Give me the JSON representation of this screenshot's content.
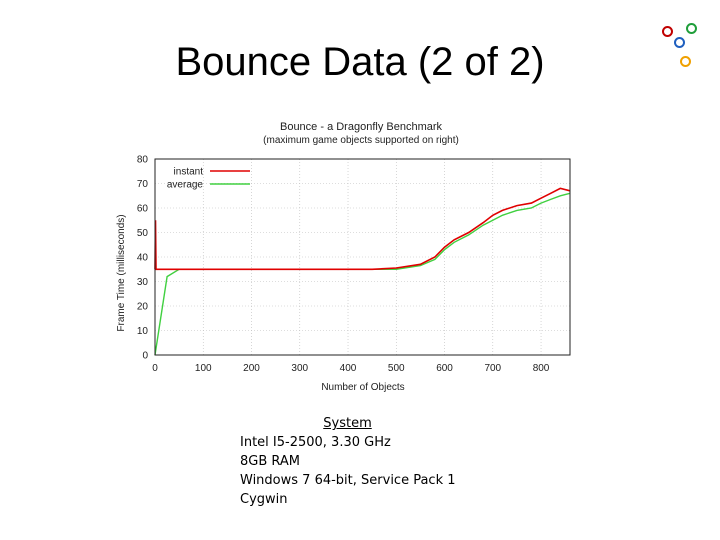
{
  "slide": {
    "title": "Bounce Data (2 of 2)"
  },
  "decorations": {
    "circle_colors": [
      "#c00000",
      "#1f9e3a",
      "#1f5fbf",
      "#f0a000"
    ]
  },
  "system_info": {
    "title": "System",
    "lines": [
      "Intel I5-2500, 3.30 GHz",
      "8GB RAM",
      "Windows 7 64-bit, Service Pack 1",
      "Cygwin"
    ]
  },
  "chart_data": {
    "type": "line",
    "title": "Bounce - a Dragonfly Benchmark",
    "subtitle": "(maximum game objects supported on right)",
    "xlabel": "Number of Objects",
    "ylabel": "Frame Time (milliseconds)",
    "xlim": [
      0,
      860
    ],
    "ylim": [
      0,
      80
    ],
    "xticks": [
      0,
      100,
      200,
      300,
      400,
      500,
      600,
      700,
      800
    ],
    "yticks": [
      0,
      10,
      20,
      30,
      40,
      50,
      60,
      70,
      80
    ],
    "grid": true,
    "legend_position": "top-left",
    "series": [
      {
        "name": "instant",
        "color": "#e00000",
        "x": [
          0,
          1,
          2,
          3,
          50,
          100,
          150,
          200,
          250,
          300,
          350,
          400,
          450,
          500,
          550,
          580,
          600,
          620,
          650,
          680,
          700,
          720,
          750,
          780,
          800,
          820,
          840,
          860
        ],
        "y": [
          35,
          55,
          35,
          35,
          35,
          35,
          35,
          35,
          35,
          35,
          35,
          35,
          35,
          35.5,
          37,
          40,
          44,
          47,
          50,
          54,
          57,
          59,
          61,
          62,
          64,
          66,
          68,
          67
        ]
      },
      {
        "name": "average",
        "color": "#40d040",
        "x": [
          0,
          25,
          50,
          100,
          150,
          200,
          250,
          300,
          350,
          400,
          450,
          500,
          550,
          580,
          600,
          620,
          650,
          680,
          700,
          720,
          750,
          780,
          800,
          820,
          840,
          860
        ],
        "y": [
          0,
          32,
          35,
          35,
          35,
          35,
          35,
          35,
          35,
          35,
          35,
          35,
          36.5,
          39,
          43,
          46,
          49,
          53,
          55,
          57,
          59,
          60,
          62,
          63.5,
          65,
          66
        ]
      }
    ]
  }
}
